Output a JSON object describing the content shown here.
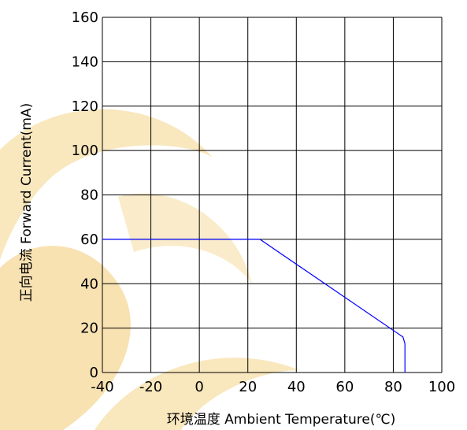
{
  "chart_data": {
    "type": "line",
    "xlabel": "环境温度  Ambient Temperature(℃)",
    "ylabel": "正向电流 Forward Current(mA)",
    "xlim": [
      -40,
      100
    ],
    "ylim": [
      0,
      160
    ],
    "x_ticks": [
      "-40",
      "-20",
      "0",
      "20",
      "40",
      "60",
      "80",
      "100"
    ],
    "y_ticks": [
      "0",
      "20",
      "40",
      "60",
      "80",
      "100",
      "120",
      "140",
      "160"
    ],
    "grid": true,
    "series": [
      {
        "color": "#0000ff",
        "x": [
          -40,
          25,
          84,
          84.8,
          84.8
        ],
        "y": [
          60,
          60,
          16,
          13,
          0
        ]
      }
    ]
  },
  "watermark": {
    "colors": [
      "#f9e7bd",
      "#f3cf7f"
    ]
  }
}
